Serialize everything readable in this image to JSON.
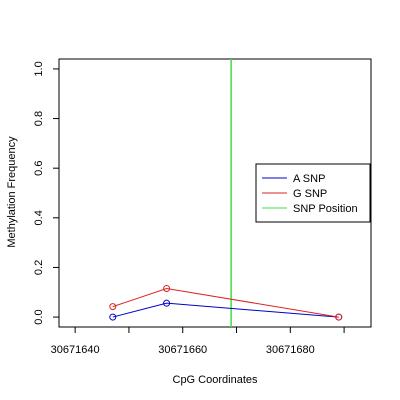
{
  "chart_data": {
    "type": "line",
    "title": "",
    "xlabel": "CpG Coordinates",
    "ylabel": "Methylation Frequency",
    "xlim": [
      30671637,
      30671695
    ],
    "ylim": [
      -0.04,
      1.04
    ],
    "x_ticks": [
      30671640,
      30671660,
      30671680
    ],
    "x_tick_labels": [
      "30671640",
      "30671660",
      "30671680"
    ],
    "y_ticks": [
      0.0,
      0.2,
      0.4,
      0.6,
      0.8,
      1.0
    ],
    "y_tick_labels": [
      "0.0",
      "0.2",
      "0.4",
      "0.6",
      "0.8",
      "1.0"
    ],
    "grid": false,
    "legend_position": "right",
    "series": [
      {
        "name": "A SNP",
        "color": "#0000cc",
        "x": [
          30671647,
          30671657,
          30671689
        ],
        "y": [
          0.0,
          0.056,
          0.0
        ]
      },
      {
        "name": "G SNP",
        "color": "#dd2222",
        "x": [
          30671647,
          30671657,
          30671689
        ],
        "y": [
          0.042,
          0.115,
          0.0
        ]
      }
    ],
    "snp_position": {
      "name": "SNP Position",
      "color": "#44dd44",
      "x": 30671669
    }
  }
}
